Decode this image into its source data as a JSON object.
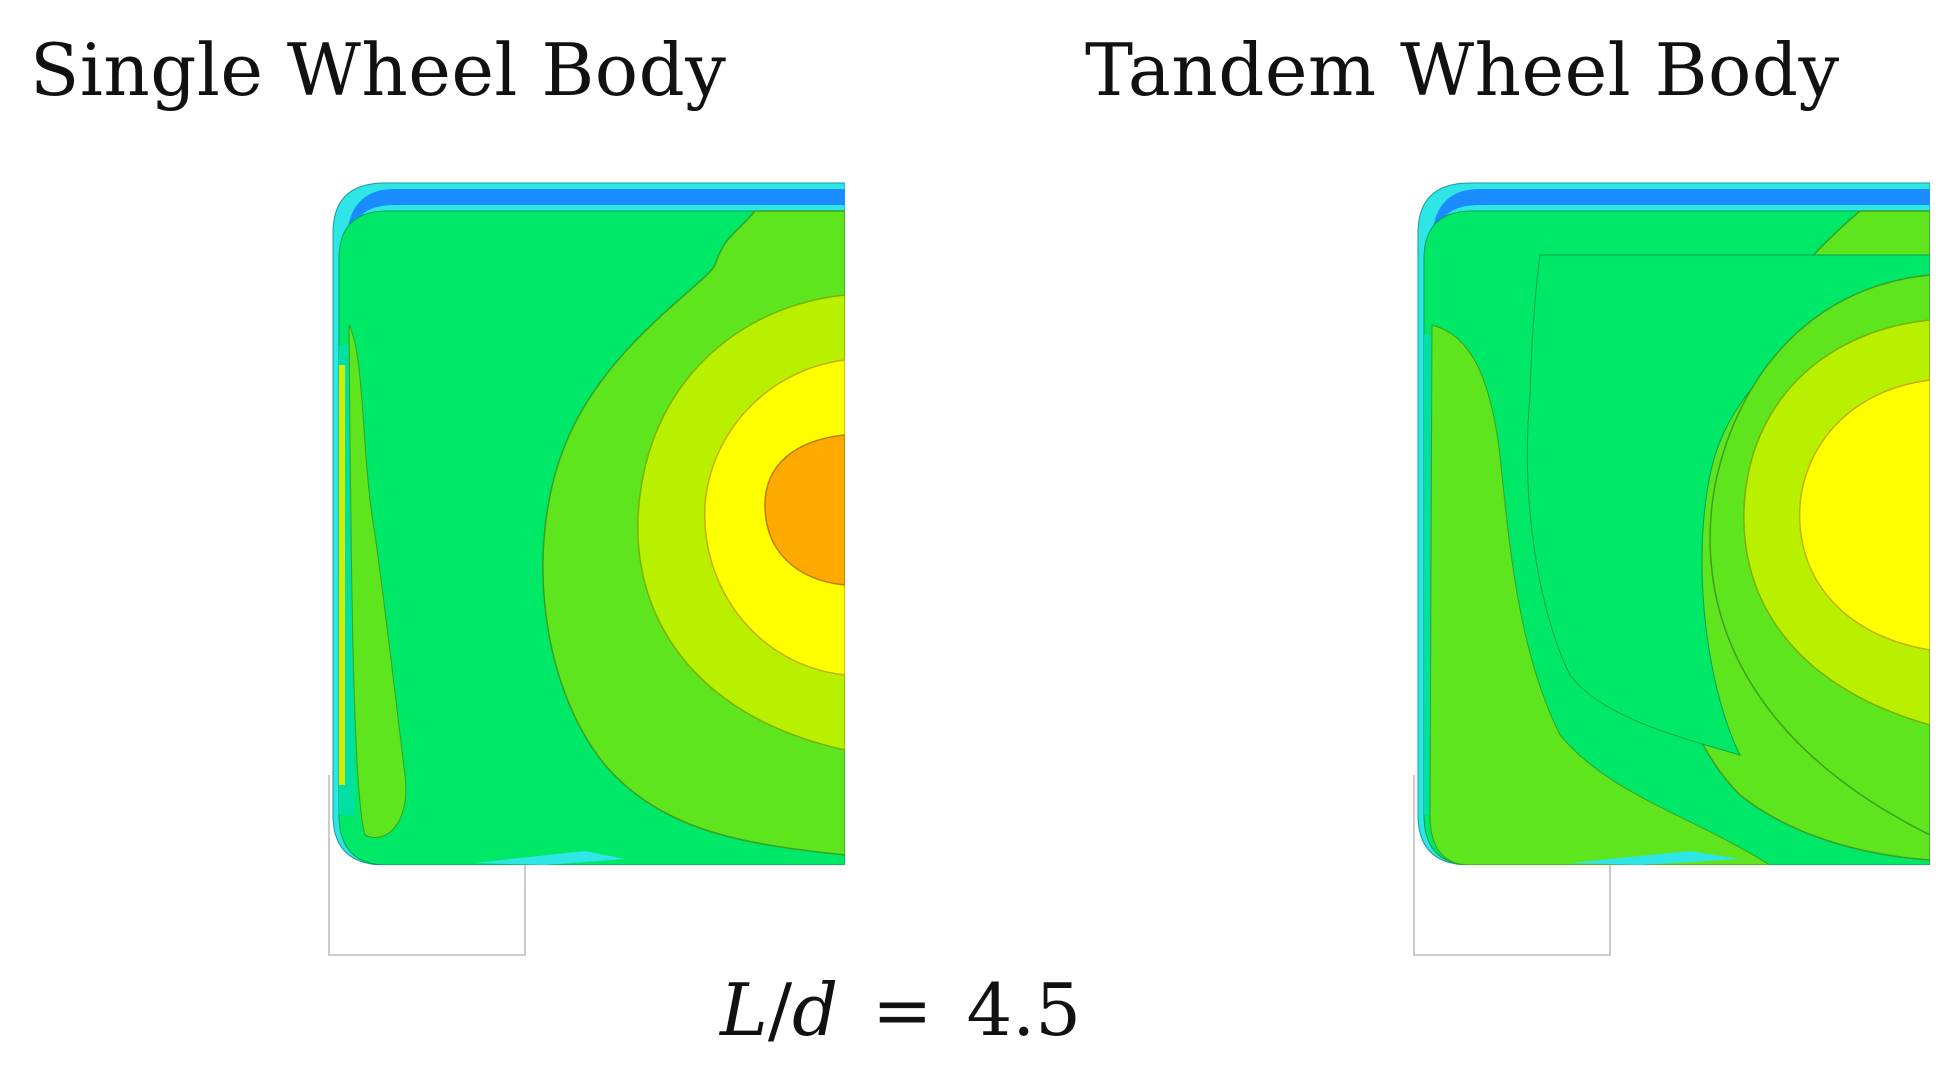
{
  "figure": {
    "caption": {
      "var_l": "L",
      "slash": "/",
      "var_d": "d",
      "equals": "=",
      "value": "4.5"
    }
  },
  "panels": [
    {
      "title": "Single Wheel Body",
      "levels": [
        "cyan",
        "light-green",
        "green",
        "lime",
        "yellow-green",
        "yellow",
        "orange"
      ],
      "colors": {
        "edge_blue": "#1a8cff",
        "edge_cyan": "#2ee6e6",
        "teal_green": "#00e0a0",
        "base_green": "#00e868",
        "light_green": "#5ee51e",
        "yellow_green": "#b8f000",
        "yellow": "#ffff00",
        "orange": "#ffaa00"
      }
    },
    {
      "title": "Tandem Wheel Body",
      "levels": [
        "cyan",
        "light-green",
        "green",
        "lime",
        "yellow-green",
        "yellow"
      ],
      "colors": {
        "edge_blue": "#1a8cff",
        "edge_cyan": "#2ee6e6",
        "teal_green": "#00e0a0",
        "base_green": "#00e868",
        "light_green": "#5ee51e",
        "yellow_green": "#b8f000",
        "yellow": "#ffff00"
      }
    }
  ]
}
